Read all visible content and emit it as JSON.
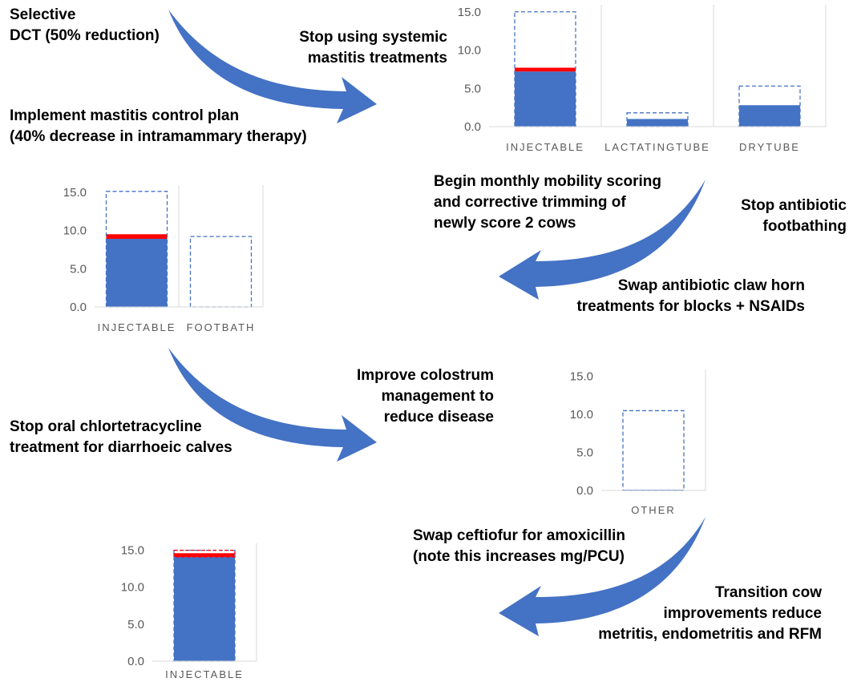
{
  "colors": {
    "bar": "#4472C4",
    "reduction": "#FF0000",
    "dashed": "#4472C4",
    "arrow": "#4472C4",
    "axis": "#D9D9D9",
    "tick_text": "#595959"
  },
  "steps": [
    {
      "labels": [
        {
          "lines": [
            "Selective",
            "DCT (50% reduction)"
          ]
        },
        {
          "lines": [
            "Stop using systemic",
            "mastitis treatments"
          ]
        },
        {
          "lines": [
            "Implement mastitis control plan",
            "(40% decrease in intramammary therapy)"
          ]
        }
      ]
    },
    {
      "labels": [
        {
          "lines": [
            "Begin monthly mobility scoring",
            "and corrective trimming of",
            "newly score 2 cows"
          ]
        },
        {
          "lines": [
            "Stop antibiotic",
            "footbathing"
          ]
        },
        {
          "lines": [
            "Swap antibiotic claw horn",
            "treatments for blocks + NSAIDs"
          ]
        }
      ]
    },
    {
      "labels": [
        {
          "lines": [
            "Improve colostrum",
            "management  to",
            "reduce disease"
          ]
        },
        {
          "lines": [
            "Stop oral chlortetracycline",
            "treatment for diarrhoeic calves"
          ]
        }
      ]
    },
    {
      "labels": [
        {
          "lines": [
            "Swap ceftiofur for amoxicillin",
            "(note this increases mg/PCU)"
          ]
        },
        {
          "lines": [
            "Transition cow",
            "improvements reduce",
            "metritis, endometritis and RFM"
          ]
        }
      ]
    }
  ],
  "chart_data": [
    {
      "type": "bar",
      "categories": [
        "INJECTABLE",
        "LACTATINGTUBE",
        "DRYTUBE"
      ],
      "values": [
        7.2,
        1.0,
        2.8
      ],
      "reduction_segment": [
        0.5,
        0,
        0
      ],
      "previous_values": [
        15.0,
        1.8,
        5.3
      ],
      "yticks": [
        "0.0",
        "5.0",
        "10.0",
        "15.0"
      ],
      "ylim": [
        0,
        15.5
      ],
      "grid": false
    },
    {
      "type": "bar",
      "categories": [
        "INJECTABLE",
        "FOOTBATH"
      ],
      "values": [
        8.9,
        0
      ],
      "reduction_segment": [
        0.6,
        0
      ],
      "previous_values": [
        15.1,
        9.2
      ],
      "yticks": [
        "0.0",
        "5.0",
        "10.0",
        "15.0"
      ],
      "ylim": [
        0,
        15.5
      ],
      "grid": false
    },
    {
      "type": "bar",
      "categories": [
        "OTHER"
      ],
      "values": [
        0.1
      ],
      "reduction_segment": [
        0
      ],
      "previous_values": [
        10.5
      ],
      "yticks": [
        "0.0",
        "5.0",
        "10.0",
        "15.0"
      ],
      "ylim": [
        0,
        15.5
      ],
      "grid": false
    },
    {
      "type": "bar",
      "categories": [
        "INJECTABLE"
      ],
      "values": [
        14.1
      ],
      "reduction_segment": [
        0.5
      ],
      "previous_values": [
        15.0
      ],
      "yticks": [
        "0.0",
        "5.0",
        "10.0",
        "15.0"
      ],
      "ylim": [
        0,
        15.5
      ],
      "grid": false
    }
  ]
}
